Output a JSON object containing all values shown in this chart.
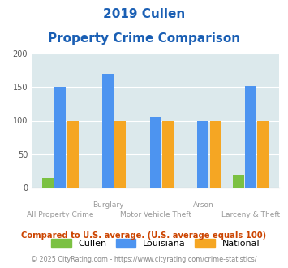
{
  "title_line1": "2019 Cullen",
  "title_line2": "Property Crime Comparison",
  "categories": [
    "All Property Crime",
    "Burglary",
    "Motor Vehicle Theft",
    "Arson",
    "Larceny & Theft"
  ],
  "cullen_values": [
    14,
    0,
    0,
    0,
    19
  ],
  "louisiana_values": [
    150,
    170,
    105,
    100,
    152
  ],
  "national_values": [
    100,
    100,
    100,
    100,
    100
  ],
  "cullen_color": "#7bc142",
  "louisiana_color": "#4d94f0",
  "national_color": "#f5a623",
  "bg_color": "#dce9ec",
  "ylim": [
    0,
    200
  ],
  "yticks": [
    0,
    50,
    100,
    150,
    200
  ],
  "xlabel_top": [
    "",
    "Burglary",
    "",
    "Arson",
    ""
  ],
  "xlabel_bottom": [
    "All Property Crime",
    "",
    "Motor Vehicle Theft",
    "",
    "Larceny & Theft"
  ],
  "legend_labels": [
    "Cullen",
    "Louisiana",
    "National"
  ],
  "footnote1": "Compared to U.S. average. (U.S. average equals 100)",
  "footnote2": "© 2025 CityRating.com - https://www.cityrating.com/crime-statistics/",
  "title_color": "#1a5fb4",
  "footnote1_color": "#cc4400",
  "footnote2_color": "#888888",
  "xlabel_top_color": "#999999",
  "xlabel_bottom_color": "#999999"
}
